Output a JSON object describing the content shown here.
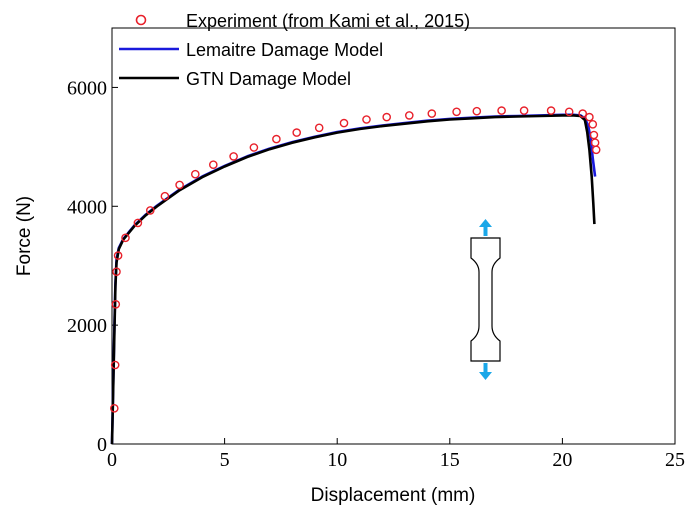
{
  "chart_data": {
    "type": "line",
    "xlabel": "Displacement (mm)",
    "ylabel": "Force (N)",
    "xlim": [
      0,
      25
    ],
    "ylim": [
      0,
      7000
    ],
    "x_ticks": [
      "0",
      "5",
      "10",
      "15",
      "20",
      "25"
    ],
    "y_ticks": [
      "0",
      "2000",
      "4000",
      "6000"
    ],
    "legend_position": "top-left",
    "series": [
      {
        "name": "Experiment (from Kami et al., 2015)",
        "style": "markers",
        "color": "#e8202a",
        "x": [
          0.1,
          0.14,
          0.17,
          0.2,
          0.27,
          0.6,
          1.15,
          1.7,
          2.35,
          3.0,
          3.7,
          4.5,
          5.4,
          6.3,
          7.3,
          8.2,
          9.2,
          10.3,
          11.3,
          12.2,
          13.2,
          14.2,
          15.3,
          16.2,
          17.3,
          18.3,
          19.5,
          20.3,
          20.9,
          21.2,
          21.35,
          21.4,
          21.45,
          21.5
        ],
        "y": [
          600,
          1330,
          2350,
          2900,
          3170,
          3470,
          3720,
          3930,
          4170,
          4360,
          4540,
          4700,
          4840,
          4990,
          5130,
          5240,
          5320,
          5400,
          5460,
          5500,
          5530,
          5560,
          5590,
          5600,
          5610,
          5610,
          5610,
          5590,
          5560,
          5500,
          5380,
          5200,
          5070,
          4950
        ]
      },
      {
        "name": "Lemaitre Damage Model",
        "style": "line",
        "color": "#1a1adc",
        "x": [
          0,
          0.05,
          0.1,
          0.15,
          0.2,
          0.3,
          0.5,
          1,
          1.5,
          2,
          3,
          4,
          5,
          6,
          7,
          8,
          9,
          10,
          11,
          12,
          13,
          14,
          15,
          16,
          17,
          18,
          19,
          20,
          20.5,
          20.8,
          21.0,
          21.15,
          21.25,
          21.35,
          21.45
        ],
        "y": [
          0,
          900,
          1900,
          2700,
          3100,
          3300,
          3450,
          3680,
          3860,
          4010,
          4280,
          4500,
          4680,
          4840,
          4970,
          5080,
          5170,
          5250,
          5310,
          5360,
          5400,
          5440,
          5470,
          5490,
          5510,
          5520,
          5530,
          5540,
          5540,
          5530,
          5480,
          5350,
          5150,
          4800,
          4500
        ]
      },
      {
        "name": "GTN Damage Model",
        "style": "line",
        "color": "#000000",
        "x": [
          0,
          0.05,
          0.1,
          0.15,
          0.2,
          0.3,
          0.5,
          1,
          1.5,
          2,
          3,
          4,
          5,
          6,
          7,
          8,
          9,
          10,
          11,
          12,
          13,
          14,
          15,
          16,
          17,
          18,
          19,
          20,
          20.5,
          20.8,
          21.0,
          21.1,
          21.2,
          21.3,
          21.37,
          21.42
        ],
        "y": [
          0,
          850,
          1800,
          2650,
          3050,
          3280,
          3440,
          3670,
          3850,
          4000,
          4270,
          4490,
          4670,
          4830,
          4960,
          5070,
          5160,
          5240,
          5300,
          5350,
          5390,
          5430,
          5460,
          5480,
          5500,
          5510,
          5520,
          5530,
          5530,
          5520,
          5450,
          5250,
          4950,
          4500,
          4050,
          3700
        ]
      }
    ]
  },
  "specimen": {
    "arrow_color": "#1aa7e8"
  }
}
